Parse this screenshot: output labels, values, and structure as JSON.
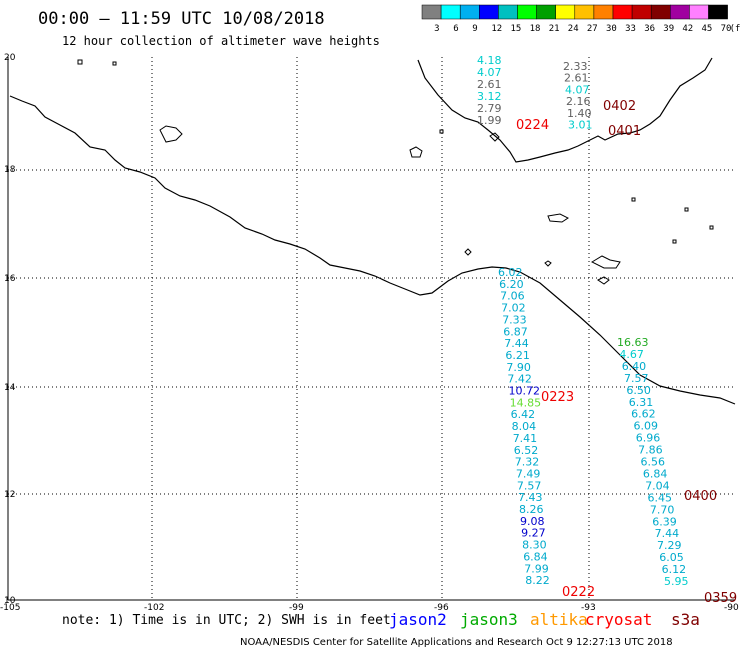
{
  "header": {
    "title": "00:00 – 11:59 UTC 10/08/2018",
    "subtitle": "12 hour collection of altimeter wave heights"
  },
  "color_scale": {
    "colors": [
      "#808080",
      "#00ffff",
      "#00b0f0",
      "#0000ff",
      "#00c0c0",
      "#00ff00",
      "#00a000",
      "#ffff00",
      "#ffc000",
      "#ff8000",
      "#ff0000",
      "#c00000",
      "#800000",
      "#a000a0",
      "#ff80ff",
      "#000000"
    ],
    "labels": [
      "3",
      "6",
      "9",
      "12",
      "15",
      "18",
      "21",
      "24",
      "27",
      "30",
      "33",
      "36",
      "39",
      "42",
      "45",
      "70"
    ],
    "unit": "(ft)"
  },
  "map": {
    "lon_range": [
      -105,
      -90
    ],
    "lat_range": [
      10,
      20
    ],
    "lon_ticks": [
      "-105",
      "-102",
      "-99",
      "-96",
      "-93",
      "-90"
    ],
    "lat_ticks": [
      "20",
      "18",
      "16",
      "14",
      "12",
      "10"
    ]
  },
  "tracks": [
    {
      "values": [
        {
          "v": "4.18",
          "color": "#00cccc"
        },
        {
          "v": "4.07",
          "color": "#00cccc"
        },
        {
          "v": "2.61",
          "color": "#606060"
        },
        {
          "v": "3.12",
          "color": "#00cccc"
        },
        {
          "v": "2.79",
          "color": "#606060"
        },
        {
          "v": "1.99",
          "color": "#606060"
        }
      ]
    },
    {
      "values": [
        {
          "v": "2.33",
          "color": "#606060"
        },
        {
          "v": "2.61",
          "color": "#606060"
        },
        {
          "v": "4.07",
          "color": "#00cccc"
        },
        {
          "v": "2.16",
          "color": "#606060"
        },
        {
          "v": "1.40",
          "color": "#606060"
        },
        {
          "v": "3.01",
          "color": "#00cccc"
        }
      ]
    },
    {
      "values": [
        {
          "v": "6.02",
          "color": "#00aacc"
        },
        {
          "v": "6.20",
          "color": "#00aacc"
        },
        {
          "v": "7.06",
          "color": "#00aacc"
        },
        {
          "v": "7.02",
          "color": "#00aacc"
        },
        {
          "v": "7.33",
          "color": "#00aacc"
        },
        {
          "v": "6.87",
          "color": "#00aacc"
        },
        {
          "v": "7.44",
          "color": "#00aacc"
        },
        {
          "v": "6.21",
          "color": "#00aacc"
        },
        {
          "v": "7.90",
          "color": "#00aacc"
        },
        {
          "v": "7.42",
          "color": "#00aacc"
        },
        {
          "v": "10.72",
          "color": "#0000cc"
        },
        {
          "v": "14.85",
          "color": "#66dd33"
        },
        {
          "v": "6.42",
          "color": "#00aacc"
        },
        {
          "v": "8.04",
          "color": "#00aacc"
        },
        {
          "v": "7.41",
          "color": "#00aacc"
        },
        {
          "v": "6.52",
          "color": "#00aacc"
        },
        {
          "v": "7.32",
          "color": "#00aacc"
        },
        {
          "v": "7.49",
          "color": "#00aacc"
        },
        {
          "v": "7.57",
          "color": "#00aacc"
        },
        {
          "v": "7.43",
          "color": "#00aacc"
        },
        {
          "v": "8.26",
          "color": "#00aacc"
        },
        {
          "v": "9.08",
          "color": "#0000cc"
        },
        {
          "v": "9.27",
          "color": "#0000cc"
        },
        {
          "v": "8.30",
          "color": "#00aacc"
        },
        {
          "v": "6.84",
          "color": "#00aacc"
        },
        {
          "v": "7.99",
          "color": "#00aacc"
        },
        {
          "v": "8.22",
          "color": "#00aacc"
        }
      ]
    },
    {
      "values": [
        {
          "v": "16.63",
          "color": "#22aa22"
        },
        {
          "v": "4.67",
          "color": "#00cccc"
        },
        {
          "v": "6.40",
          "color": "#00aacc"
        },
        {
          "v": "7.57",
          "color": "#00aacc"
        },
        {
          "v": "6.50",
          "color": "#00aacc"
        },
        {
          "v": "6.31",
          "color": "#00aacc"
        },
        {
          "v": "6.62",
          "color": "#00aacc"
        },
        {
          "v": "6.09",
          "color": "#00aacc"
        },
        {
          "v": "6.96",
          "color": "#00aacc"
        },
        {
          "v": "7.86",
          "color": "#00aacc"
        },
        {
          "v": "6.56",
          "color": "#00aacc"
        },
        {
          "v": "6.84",
          "color": "#00aacc"
        },
        {
          "v": "7.04",
          "color": "#00aacc"
        },
        {
          "v": "6.45",
          "color": "#00aacc"
        },
        {
          "v": "7.70",
          "color": "#00aacc"
        },
        {
          "v": "6.39",
          "color": "#00aacc"
        },
        {
          "v": "7.44",
          "color": "#00aacc"
        },
        {
          "v": "7.29",
          "color": "#00aacc"
        },
        {
          "v": "6.05",
          "color": "#00aacc"
        },
        {
          "v": "6.12",
          "color": "#00aacc"
        },
        {
          "v": "5.95",
          "color": "#00cccc"
        }
      ]
    }
  ],
  "times": [
    {
      "t": "0224",
      "color": "#ee0000"
    },
    {
      "t": "0402",
      "color": "#800000"
    },
    {
      "t": "0401",
      "color": "#800000"
    },
    {
      "t": "0223",
      "color": "#ee0000"
    },
    {
      "t": "0400",
      "color": "#800000"
    },
    {
      "t": "0222",
      "color": "#ee0000"
    },
    {
      "t": "0359",
      "color": "#800000"
    }
  ],
  "footer": {
    "note": "note: 1) Time is in UTC; 2) SWH is in feet",
    "legend": [
      {
        "name": "jason2",
        "color": "#0000ff"
      },
      {
        "name": "jason3",
        "color": "#00aa00"
      },
      {
        "name": "altika",
        "color": "#ff9900"
      },
      {
        "name": "cryosat",
        "color": "#ff0000"
      },
      {
        "name": "s3a",
        "color": "#800000"
      }
    ],
    "credit": "NOAA/NESDIS Center for Satellite Applications and Research    Oct  9 12:27:13 UTC 2018"
  }
}
